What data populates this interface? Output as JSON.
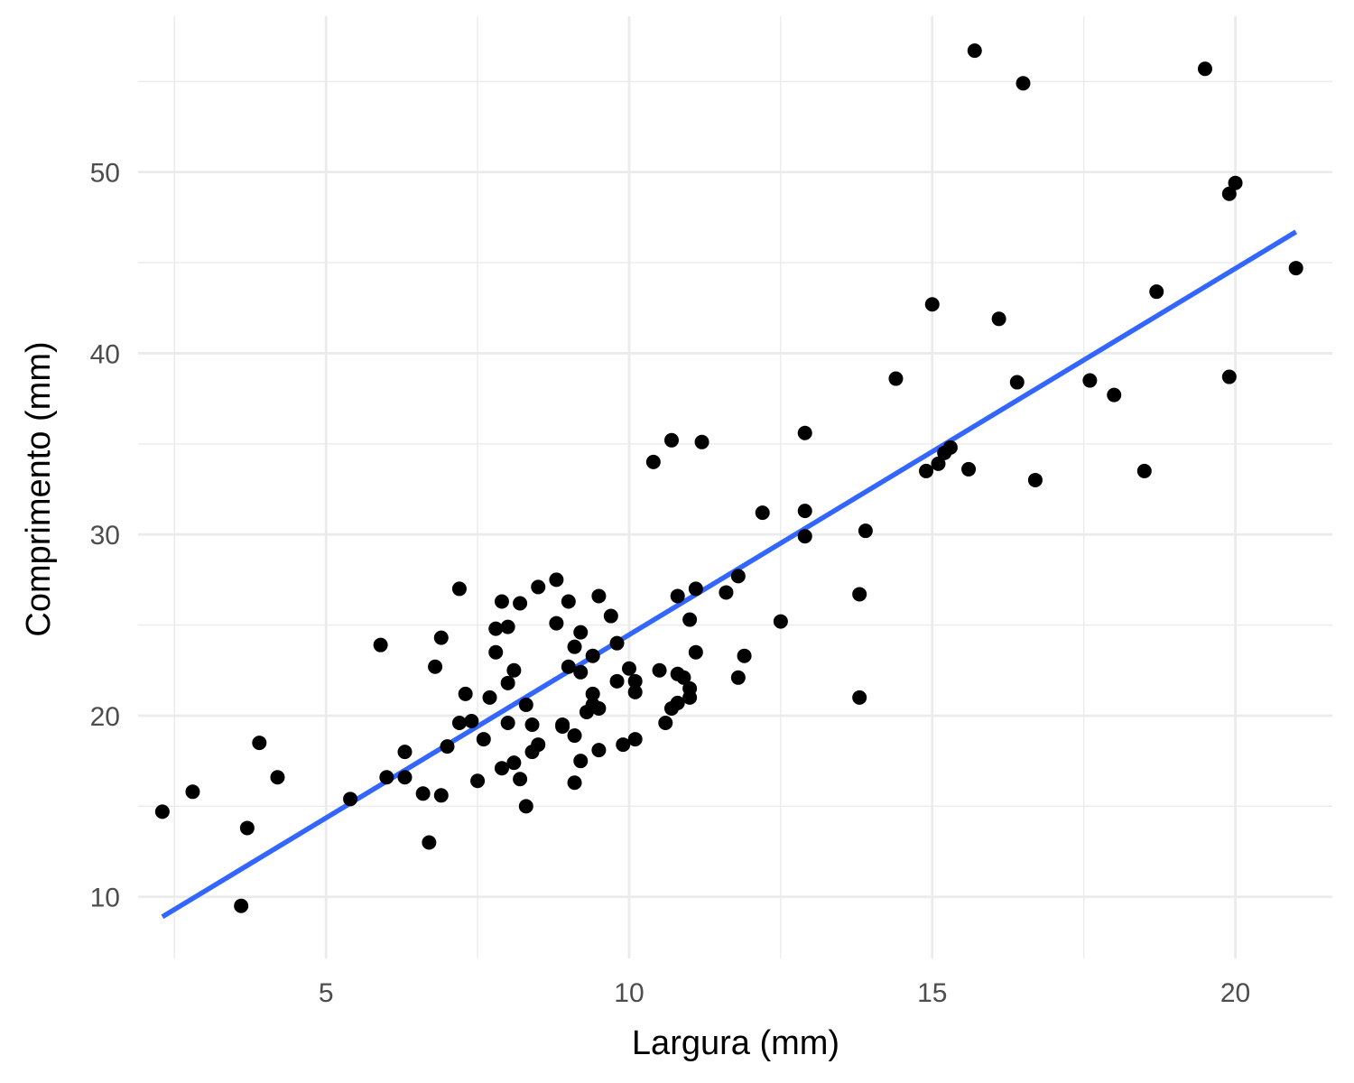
{
  "chart_data": {
    "type": "scatter",
    "xlabel": "Largura (mm)",
    "ylabel": "Comprimento (mm)",
    "xlim": [
      1.9,
      21.6
    ],
    "ylim": [
      6.6,
      58.6
    ],
    "x_ticks": [
      5,
      10,
      15,
      20
    ],
    "y_ticks": [
      10,
      20,
      30,
      40,
      50
    ],
    "x_tick_labels": [
      "5",
      "10",
      "15",
      "20"
    ],
    "y_tick_labels": [
      "10",
      "20",
      "30",
      "40",
      "50"
    ],
    "grid": true,
    "point_color": "#000000",
    "line_color": "#3366FF",
    "trend_line": {
      "type": "linear",
      "x": [
        2.3,
        21.0
      ],
      "y": [
        8.9,
        46.7
      ]
    },
    "points": [
      {
        "x": 2.3,
        "y": 14.7
      },
      {
        "x": 2.8,
        "y": 15.8
      },
      {
        "x": 3.6,
        "y": 9.5
      },
      {
        "x": 3.7,
        "y": 13.8
      },
      {
        "x": 3.9,
        "y": 18.5
      },
      {
        "x": 4.2,
        "y": 16.6
      },
      {
        "x": 5.4,
        "y": 15.4
      },
      {
        "x": 5.9,
        "y": 23.9
      },
      {
        "x": 6.0,
        "y": 16.6
      },
      {
        "x": 6.3,
        "y": 16.6
      },
      {
        "x": 6.3,
        "y": 18.0
      },
      {
        "x": 6.6,
        "y": 15.7
      },
      {
        "x": 6.7,
        "y": 13.0
      },
      {
        "x": 6.8,
        "y": 22.7
      },
      {
        "x": 6.9,
        "y": 15.6
      },
      {
        "x": 6.9,
        "y": 24.3
      },
      {
        "x": 7.0,
        "y": 18.3
      },
      {
        "x": 7.2,
        "y": 19.6
      },
      {
        "x": 7.2,
        "y": 27.0
      },
      {
        "x": 7.3,
        "y": 21.2
      },
      {
        "x": 7.4,
        "y": 19.7
      },
      {
        "x": 7.5,
        "y": 16.4
      },
      {
        "x": 7.6,
        "y": 18.7
      },
      {
        "x": 7.7,
        "y": 21.0
      },
      {
        "x": 7.8,
        "y": 23.5
      },
      {
        "x": 7.8,
        "y": 24.8
      },
      {
        "x": 7.9,
        "y": 26.3
      },
      {
        "x": 7.9,
        "y": 17.1
      },
      {
        "x": 8.0,
        "y": 21.8
      },
      {
        "x": 8.0,
        "y": 19.6
      },
      {
        "x": 8.0,
        "y": 24.9
      },
      {
        "x": 8.1,
        "y": 22.5
      },
      {
        "x": 8.1,
        "y": 17.4
      },
      {
        "x": 8.2,
        "y": 26.2
      },
      {
        "x": 8.2,
        "y": 16.5
      },
      {
        "x": 8.3,
        "y": 20.6
      },
      {
        "x": 8.3,
        "y": 15.0
      },
      {
        "x": 8.4,
        "y": 19.5
      },
      {
        "x": 8.4,
        "y": 18.0
      },
      {
        "x": 8.5,
        "y": 18.4
      },
      {
        "x": 8.5,
        "y": 27.1
      },
      {
        "x": 8.8,
        "y": 27.5
      },
      {
        "x": 8.8,
        "y": 25.1
      },
      {
        "x": 8.9,
        "y": 19.4
      },
      {
        "x": 8.9,
        "y": 19.5
      },
      {
        "x": 9.0,
        "y": 22.7
      },
      {
        "x": 9.0,
        "y": 26.3
      },
      {
        "x": 9.1,
        "y": 18.9
      },
      {
        "x": 9.1,
        "y": 16.3
      },
      {
        "x": 9.1,
        "y": 23.8
      },
      {
        "x": 9.2,
        "y": 24.6
      },
      {
        "x": 9.2,
        "y": 22.4
      },
      {
        "x": 9.2,
        "y": 17.5
      },
      {
        "x": 9.3,
        "y": 20.2
      },
      {
        "x": 9.4,
        "y": 23.3
      },
      {
        "x": 9.4,
        "y": 20.6
      },
      {
        "x": 9.4,
        "y": 21.2
      },
      {
        "x": 9.5,
        "y": 20.4
      },
      {
        "x": 9.5,
        "y": 26.6
      },
      {
        "x": 9.5,
        "y": 18.1
      },
      {
        "x": 9.7,
        "y": 25.5
      },
      {
        "x": 9.8,
        "y": 21.9
      },
      {
        "x": 9.8,
        "y": 24.0
      },
      {
        "x": 9.9,
        "y": 18.4
      },
      {
        "x": 10.0,
        "y": 22.6
      },
      {
        "x": 10.1,
        "y": 21.9
      },
      {
        "x": 10.1,
        "y": 21.3
      },
      {
        "x": 10.1,
        "y": 18.7
      },
      {
        "x": 10.4,
        "y": 34.0
      },
      {
        "x": 10.5,
        "y": 22.5
      },
      {
        "x": 10.6,
        "y": 19.6
      },
      {
        "x": 10.7,
        "y": 20.4
      },
      {
        "x": 10.7,
        "y": 35.2
      },
      {
        "x": 10.8,
        "y": 22.3
      },
      {
        "x": 10.8,
        "y": 20.7
      },
      {
        "x": 10.8,
        "y": 26.6
      },
      {
        "x": 10.9,
        "y": 22.1
      },
      {
        "x": 11.0,
        "y": 21.5
      },
      {
        "x": 11.0,
        "y": 25.3
      },
      {
        "x": 11.0,
        "y": 21.0
      },
      {
        "x": 11.1,
        "y": 27.0
      },
      {
        "x": 11.1,
        "y": 23.5
      },
      {
        "x": 11.2,
        "y": 35.1
      },
      {
        "x": 11.6,
        "y": 26.8
      },
      {
        "x": 11.8,
        "y": 22.1
      },
      {
        "x": 11.8,
        "y": 27.7
      },
      {
        "x": 11.9,
        "y": 23.3
      },
      {
        "x": 12.2,
        "y": 31.2
      },
      {
        "x": 12.5,
        "y": 25.2
      },
      {
        "x": 12.9,
        "y": 35.6
      },
      {
        "x": 12.9,
        "y": 31.3
      },
      {
        "x": 12.9,
        "y": 29.9
      },
      {
        "x": 13.8,
        "y": 21.0
      },
      {
        "x": 13.8,
        "y": 26.7
      },
      {
        "x": 13.9,
        "y": 30.2
      },
      {
        "x": 14.4,
        "y": 38.6
      },
      {
        "x": 14.9,
        "y": 33.5
      },
      {
        "x": 15.0,
        "y": 42.7
      },
      {
        "x": 15.1,
        "y": 33.9
      },
      {
        "x": 15.2,
        "y": 34.5
      },
      {
        "x": 15.3,
        "y": 34.8
      },
      {
        "x": 15.6,
        "y": 33.6
      },
      {
        "x": 15.7,
        "y": 56.7
      },
      {
        "x": 16.1,
        "y": 41.9
      },
      {
        "x": 16.4,
        "y": 38.4
      },
      {
        "x": 16.5,
        "y": 54.9
      },
      {
        "x": 16.7,
        "y": 33.0
      },
      {
        "x": 17.6,
        "y": 38.5
      },
      {
        "x": 18.0,
        "y": 37.7
      },
      {
        "x": 18.5,
        "y": 33.5
      },
      {
        "x": 18.7,
        "y": 43.4
      },
      {
        "x": 19.5,
        "y": 55.7
      },
      {
        "x": 19.9,
        "y": 38.7
      },
      {
        "x": 19.9,
        "y": 48.8
      },
      {
        "x": 20.0,
        "y": 49.4
      },
      {
        "x": 21.0,
        "y": 44.7
      }
    ]
  }
}
